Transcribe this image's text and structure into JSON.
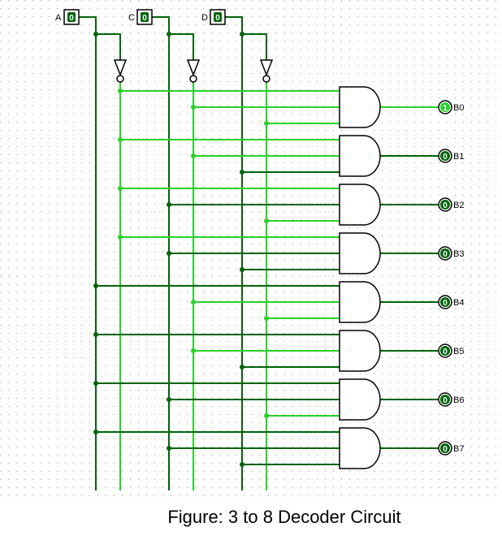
{
  "caption": "Figure: 3 to 8 Decoder Circuit",
  "colors": {
    "wire_low": "#00640a",
    "wire_high": "#28d228",
    "gate_stroke": "#000000",
    "grid_dot": "#9a9a9a",
    "background": "#ffffff"
  },
  "inputs": [
    {
      "label": "A",
      "value": "0"
    },
    {
      "label": "C",
      "value": "0"
    },
    {
      "label": "D",
      "value": "0"
    }
  ],
  "outputs": [
    {
      "label": "B0",
      "value": "1"
    },
    {
      "label": "B1",
      "value": "0"
    },
    {
      "label": "B2",
      "value": "0"
    },
    {
      "label": "B3",
      "value": "0"
    },
    {
      "label": "B4",
      "value": "0"
    },
    {
      "label": "B5",
      "value": "0"
    },
    {
      "label": "B6",
      "value": "0"
    },
    {
      "label": "B7",
      "value": "0"
    }
  ],
  "gate_count": 8
}
